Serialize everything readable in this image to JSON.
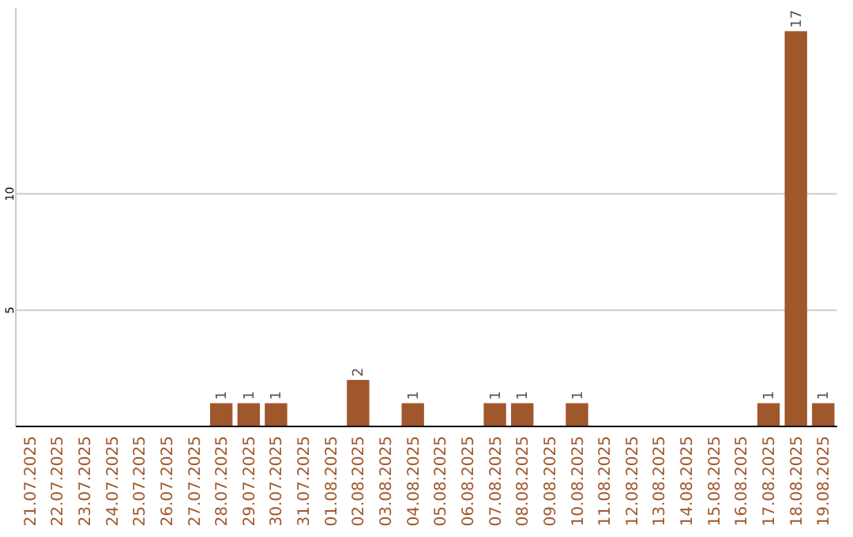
{
  "chart_data": {
    "type": "bar",
    "categories": [
      "21.07.2025",
      "22.07.2025",
      "23.07.2025",
      "24.07.2025",
      "25.07.2025",
      "26.07.2025",
      "27.07.2025",
      "28.07.2025",
      "29.07.2025",
      "30.07.2025",
      "31.07.2025",
      "01.08.2025",
      "02.08.2025",
      "03.08.2025",
      "04.08.2025",
      "05.08.2025",
      "06.08.2025",
      "07.08.2025",
      "08.08.2025",
      "09.08.2025",
      "10.08.2025",
      "11.08.2025",
      "12.08.2025",
      "13.08.2025",
      "14.08.2025",
      "15.08.2025",
      "16.08.2025",
      "17.08.2025",
      "18.08.2025",
      "19.08.2025"
    ],
    "values": [
      0,
      0,
      0,
      0,
      0,
      0,
      0,
      1,
      1,
      1,
      0,
      0,
      2,
      0,
      1,
      0,
      0,
      1,
      1,
      0,
      1,
      0,
      0,
      0,
      0,
      0,
      0,
      1,
      17,
      1
    ],
    "value_labels": [
      null,
      null,
      null,
      null,
      null,
      null,
      null,
      "1",
      "1",
      "1",
      null,
      null,
      "2",
      null,
      "1",
      null,
      null,
      "1",
      "1",
      null,
      "1",
      null,
      null,
      null,
      null,
      null,
      null,
      "1",
      "17",
      "1"
    ],
    "color": "#a0572b",
    "ylim": [
      0,
      18
    ],
    "yticks": [
      5,
      10
    ],
    "grid": "y"
  }
}
